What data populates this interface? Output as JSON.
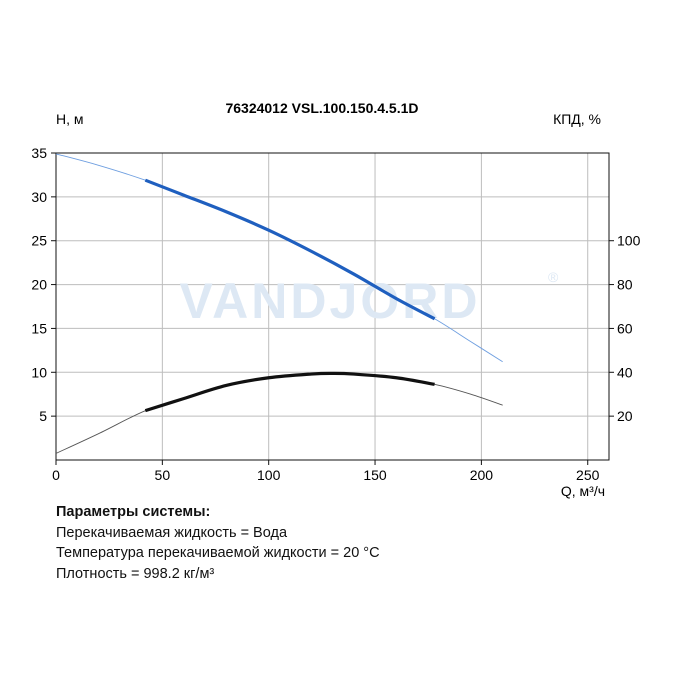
{
  "chart_data": {
    "type": "line",
    "title": "76324012 VSL.100.150.4.5.1D",
    "xlabel": "Q, м³/ч",
    "ylabel": "H, м",
    "y2label": "КПД, %",
    "xlim": [
      0,
      260
    ],
    "ylim": [
      0,
      35
    ],
    "y2lim": [
      0,
      140
    ],
    "x_ticks": [
      0,
      50,
      100,
      150,
      200,
      250
    ],
    "y_ticks": [
      5,
      10,
      15,
      20,
      25,
      30,
      35
    ],
    "y2_ticks": [
      20,
      40,
      60,
      80,
      100
    ],
    "grid": true,
    "watermark": "VANDJORD",
    "series": [
      {
        "axis": "left",
        "color": "#1f5fbf",
        "operating_range": [
          42,
          178
        ],
        "x": [
          0,
          20,
          42,
          60,
          80,
          100,
          120,
          140,
          160,
          178,
          195,
          210
        ],
        "values": [
          34.9,
          33.6,
          31.9,
          30.2,
          28.3,
          26.2,
          23.8,
          21.2,
          18.4,
          16.1,
          13.5,
          11.2
        ]
      },
      {
        "axis": "right",
        "color": "#111111",
        "operating_range": [
          42,
          178
        ],
        "x": [
          0,
          20,
          42,
          60,
          80,
          100,
          120,
          130,
          140,
          160,
          178,
          195,
          210
        ],
        "values": [
          3,
          12,
          22.5,
          28,
          34,
          37.5,
          39.2,
          39.5,
          39.2,
          37.5,
          34.5,
          30,
          25
        ]
      }
    ]
  },
  "params": {
    "title": "Параметры системы:",
    "lines": [
      "Перекачиваемая жидкость = Вода",
      "Температура перекачиваемой жидкости = 20 °C",
      "Плотность = 998.2 кг/м³"
    ]
  }
}
